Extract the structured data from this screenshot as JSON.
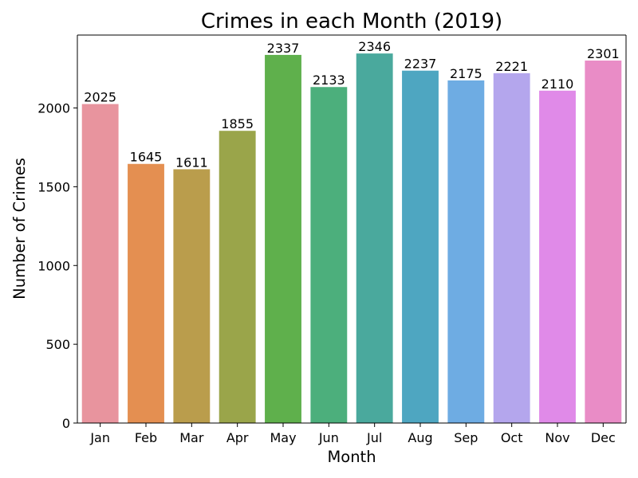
{
  "chart_data": {
    "type": "bar",
    "title": "Crimes in each Month (2019)",
    "xlabel": "Month",
    "ylabel": "Number of Crimes",
    "categories": [
      "Jan",
      "Feb",
      "Mar",
      "Apr",
      "May",
      "Jun",
      "Jul",
      "Aug",
      "Sep",
      "Oct",
      "Nov",
      "Dec"
    ],
    "values": [
      2025,
      1645,
      1611,
      1855,
      2337,
      2133,
      2346,
      2237,
      2175,
      2221,
      2110,
      2301
    ],
    "value_labels": [
      "2025",
      "1645",
      "1611",
      "1855",
      "2337",
      "2133",
      "2346",
      "2237",
      "2175",
      "2221",
      "2110",
      "2301"
    ],
    "colors": [
      "#e8949e",
      "#e48f51",
      "#ba9d4c",
      "#9aa54a",
      "#5fb04c",
      "#4caf7c",
      "#4aa99d",
      "#4ea6c1",
      "#6eace3",
      "#b4a6ed",
      "#e08ae8",
      "#e98cc6"
    ],
    "ylim": [
      0,
      2463
    ],
    "yticks": [
      0,
      500,
      1000,
      1500,
      2000
    ],
    "ytick_labels": [
      "0",
      "500",
      "1000",
      "1500",
      "2000"
    ],
    "grid": false,
    "legend": "none"
  }
}
